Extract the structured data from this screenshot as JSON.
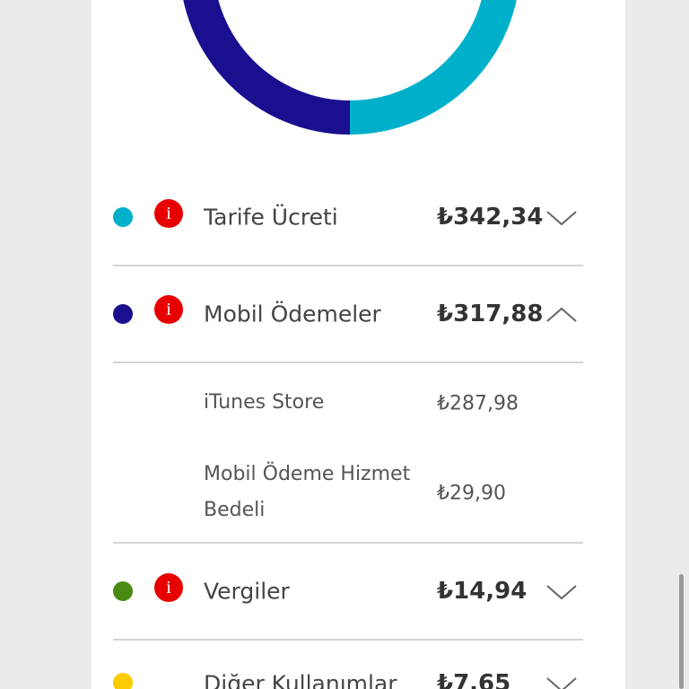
{
  "items": [
    {
      "label": "Tarife Ücreti",
      "amount": "₺342,34"
    },
    {
      "label": "Mobil Ödemeler",
      "amount": "₺317,88",
      "subitems": [
        {
          "label": "iTunes Store",
          "amount": "₺287,98"
        },
        {
          "label": "Mobil Ödeme Hizmet Bedeli",
          "amount": "₺29,90"
        }
      ]
    },
    {
      "label": "Vergiler",
      "amount": "₺14,94"
    },
    {
      "label": "Diğer Kullanımlar",
      "amount": "₺7,65"
    }
  ]
}
